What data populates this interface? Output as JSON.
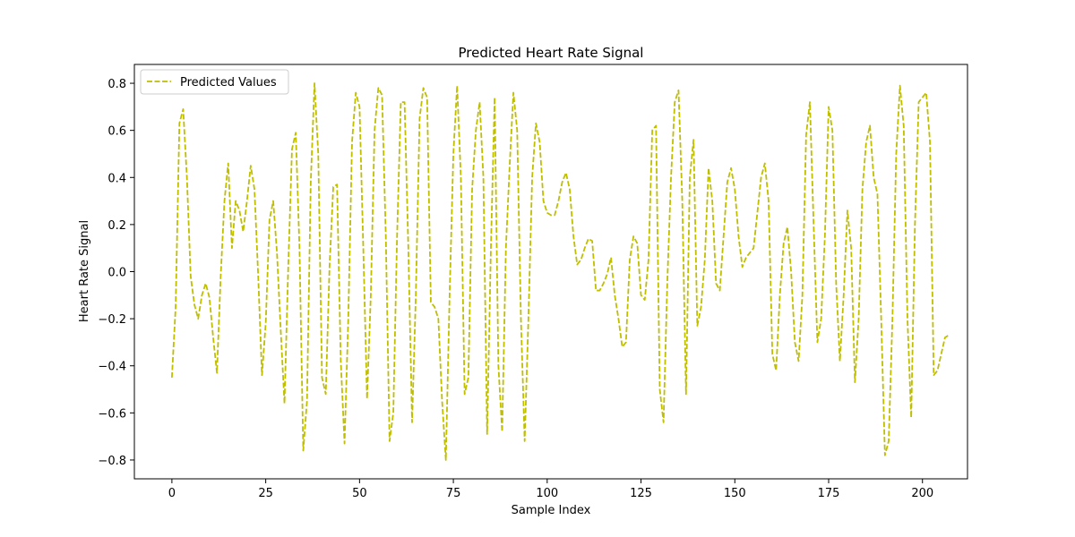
{
  "chart_data": {
    "type": "line",
    "title": "Predicted Heart Rate Signal",
    "xlabel": "Sample Index",
    "ylabel": "Heart Rate Signal",
    "xlim": [
      -10,
      212
    ],
    "ylim": [
      -0.88,
      0.88
    ],
    "xticks": [
      0,
      25,
      50,
      75,
      100,
      125,
      150,
      175,
      200
    ],
    "yticks": [
      -0.8,
      -0.6,
      -0.4,
      -0.2,
      0.0,
      0.2,
      0.4,
      0.6,
      0.8
    ],
    "ytick_labels": [
      "−0.8",
      "−0.6",
      "−0.4",
      "−0.2",
      "0.0",
      "0.2",
      "0.4",
      "0.6",
      "0.8"
    ],
    "grid": false,
    "legend_position": "upper-left",
    "series": [
      {
        "name": "Predicted Values",
        "color": "#bfbf00",
        "linestyle": "dashed",
        "y": [
          -0.45,
          -0.15,
          0.63,
          0.69,
          0.4,
          -0.02,
          -0.14,
          -0.2,
          -0.1,
          -0.05,
          -0.11,
          -0.28,
          -0.43,
          -0.02,
          0.3,
          0.46,
          0.1,
          0.3,
          0.26,
          0.17,
          0.3,
          0.45,
          0.35,
          -0.02,
          -0.44,
          -0.22,
          0.22,
          0.3,
          0.08,
          -0.25,
          -0.56,
          0.02,
          0.52,
          0.59,
          0.1,
          -0.76,
          -0.55,
          0.38,
          0.8,
          0.5,
          -0.45,
          -0.52,
          0.02,
          0.36,
          0.37,
          -0.38,
          -0.73,
          -0.2,
          0.55,
          0.76,
          0.7,
          0.1,
          -0.54,
          -0.1,
          0.6,
          0.78,
          0.75,
          0.15,
          -0.72,
          -0.6,
          0.15,
          0.72,
          0.72,
          0.1,
          -0.64,
          -0.1,
          0.65,
          0.78,
          0.74,
          -0.13,
          -0.15,
          -0.2,
          -0.55,
          -0.8,
          -0.1,
          0.5,
          0.79,
          0.4,
          -0.52,
          -0.45,
          0.35,
          0.6,
          0.72,
          0.4,
          -0.69,
          0.1,
          0.74,
          -0.4,
          -0.68,
          0.1,
          0.45,
          0.76,
          0.6,
          -0.2,
          -0.72,
          -0.2,
          0.4,
          0.63,
          0.55,
          0.3,
          0.25,
          0.24,
          0.24,
          0.3,
          0.38,
          0.42,
          0.35,
          0.15,
          0.03,
          0.05,
          0.1,
          0.14,
          0.13,
          -0.08,
          -0.08,
          -0.05,
          -0.01,
          0.06,
          -0.1,
          -0.2,
          -0.32,
          -0.3,
          0.05,
          0.15,
          0.12,
          -0.1,
          -0.12,
          0.05,
          0.6,
          0.62,
          -0.5,
          -0.64,
          -0.05,
          0.4,
          0.72,
          0.77,
          0.3,
          -0.52,
          0.4,
          0.56,
          -0.23,
          -0.15,
          0.05,
          0.44,
          0.3,
          -0.05,
          -0.08,
          0.15,
          0.38,
          0.44,
          0.35,
          0.15,
          0.02,
          0.06,
          0.08,
          0.1,
          0.25,
          0.4,
          0.46,
          0.3,
          -0.35,
          -0.42,
          -0.1,
          0.12,
          0.19,
          0.0,
          -0.3,
          -0.38,
          -0.1,
          0.58,
          0.72,
          0.2,
          -0.3,
          -0.2,
          0.15,
          0.7,
          0.6,
          -0.05,
          -0.38,
          -0.1,
          0.26,
          0.1,
          -0.47,
          -0.2,
          0.35,
          0.55,
          0.62,
          0.4,
          0.33,
          -0.2,
          -0.78,
          -0.72,
          -0.2,
          0.5,
          0.79,
          0.62,
          -0.2,
          -0.62,
          0.2,
          0.72,
          0.74,
          0.76,
          0.55,
          -0.44,
          -0.42,
          -0.35,
          -0.28,
          -0.27
        ]
      }
    ]
  }
}
